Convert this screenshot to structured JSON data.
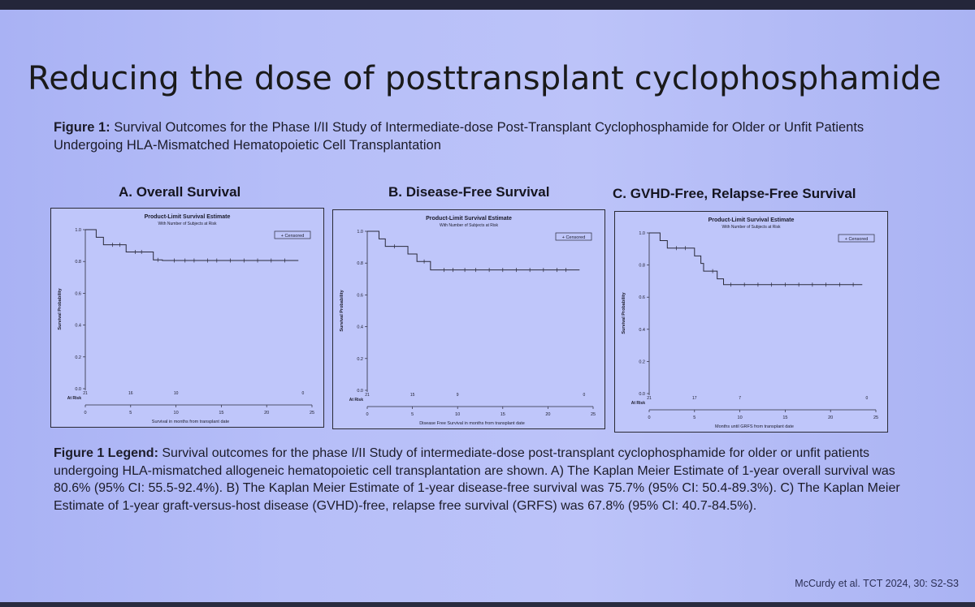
{
  "slide": {
    "title": "Reducing the dose of posttransplant cyclophosphamide",
    "figure_caption_label": "Figure 1:",
    "figure_caption_text": " Survival Outcomes for the Phase I/II Study of Intermediate-dose Post-Transplant Cyclophosphamide for Older or Unfit Patients Undergoing HLA-Mismatched Hematopoietic Cell Transplantation",
    "legend_label": "Figure 1 Legend:",
    "legend_text": " Survival outcomes for the phase I/II Study of intermediate-dose post-transplant cyclophosphamide for older or unfit patients undergoing HLA-mismatched allogeneic hematopoietic cell transplantation are shown. A) The Kaplan Meier Estimate of 1-year overall survival was 80.6% (95% CI: 55.5-92.4%). B) The Kaplan Meier Estimate of 1-year disease-free survival was 75.7% (95% CI: 50.4-89.3%). C) The Kaplan Meier Estimate of 1-year graft-versus-host disease (GVHD)-free, relapse free survival (GRFS) was 67.8% (95% CI: 40.7-84.5%).",
    "citation": "McCurdy et al. TCT 2024, 30: S2-S3"
  },
  "colors": {
    "line": "#2a2a3a",
    "slide_bg": "#b6bef8"
  },
  "chart_data": [
    {
      "type": "line",
      "panel_title": "A. Overall Survival",
      "title": "Product-Limit Survival Estimate",
      "subtitle": "With Number of Subjects at Risk",
      "legend": "+ Censored",
      "xlabel": "Survival in months from transplant date",
      "ylabel": "Survival Probability",
      "at_risk_label": "At Risk",
      "xlim": [
        0,
        25
      ],
      "ylim": [
        0,
        1
      ],
      "xticks": [
        "0",
        "5",
        "10",
        "15",
        "20",
        "25"
      ],
      "yticks": [
        "0.0",
        "0.2",
        "0.4",
        "0.6",
        "0.8",
        "1.0"
      ],
      "at_risk": [
        {
          "x": 0,
          "n": "21"
        },
        {
          "x": 5,
          "n": "16"
        },
        {
          "x": 10,
          "n": "10"
        },
        {
          "x": 24,
          "n": "0"
        }
      ],
      "steps": [
        [
          0,
          1.0
        ],
        [
          1.2,
          0.952
        ],
        [
          2.0,
          0.905
        ],
        [
          4.5,
          0.86
        ],
        [
          7.5,
          0.81
        ],
        [
          8.5,
          0.806
        ],
        [
          23.5,
          0.806
        ]
      ],
      "censored": [
        3.0,
        3.8,
        5.5,
        6.2,
        8.0,
        9.8,
        11.0,
        12.0,
        13.5,
        14.5,
        16.0,
        17.5,
        19.0,
        20.5,
        22.0
      ]
    },
    {
      "type": "line",
      "panel_title": "B. Disease-Free Survival",
      "title": "Product-Limit Survival Estimate",
      "subtitle": "With Number of Subjects at Risk",
      "legend": "+ Censored",
      "xlabel": "Disease Free Survival in months from transplant date",
      "ylabel": "Survival Probability",
      "at_risk_label": "At Risk",
      "xlim": [
        0,
        25
      ],
      "ylim": [
        0,
        1
      ],
      "xticks": [
        "0",
        "5",
        "10",
        "15",
        "20",
        "25"
      ],
      "yticks": [
        "0.0",
        "0.2",
        "0.4",
        "0.6",
        "0.8",
        "1.0"
      ],
      "at_risk": [
        {
          "x": 0,
          "n": "21"
        },
        {
          "x": 5,
          "n": "15"
        },
        {
          "x": 10,
          "n": "9"
        },
        {
          "x": 24,
          "n": "0"
        }
      ],
      "steps": [
        [
          0,
          1.0
        ],
        [
          1.3,
          0.952
        ],
        [
          2.0,
          0.905
        ],
        [
          4.5,
          0.857
        ],
        [
          5.5,
          0.81
        ],
        [
          7.0,
          0.757
        ],
        [
          23.5,
          0.757
        ]
      ],
      "censored": [
        3.0,
        6.3,
        8.5,
        9.5,
        10.8,
        12.0,
        13.5,
        15.0,
        16.5,
        18.0,
        19.5,
        21.0,
        22.0
      ]
    },
    {
      "type": "line",
      "panel_title": "C. GVHD-Free, Relapse-Free Survival",
      "title": "Product-Limit Survival Estimate",
      "subtitle": "With Number of Subjects at Risk",
      "legend": "+ Censored",
      "xlabel": "Months until GRFS from transplant date",
      "ylabel": "Survival Probability",
      "at_risk_label": "At Risk",
      "xlim": [
        0,
        25
      ],
      "ylim": [
        0,
        1
      ],
      "xticks": [
        "0",
        "5",
        "10",
        "15",
        "20",
        "25"
      ],
      "yticks": [
        "0.0",
        "0.2",
        "0.4",
        "0.6",
        "0.8",
        "1.0"
      ],
      "at_risk": [
        {
          "x": 0,
          "n": "21"
        },
        {
          "x": 5,
          "n": "17"
        },
        {
          "x": 10,
          "n": "7"
        },
        {
          "x": 24,
          "n": "0"
        }
      ],
      "steps": [
        [
          0,
          1.0
        ],
        [
          1.2,
          0.952
        ],
        [
          2.0,
          0.905
        ],
        [
          5.0,
          0.857
        ],
        [
          5.7,
          0.81
        ],
        [
          6.0,
          0.762
        ],
        [
          7.5,
          0.714
        ],
        [
          8.2,
          0.678
        ],
        [
          23.5,
          0.678
        ]
      ],
      "censored": [
        3.0,
        4.0,
        7.0,
        9.0,
        10.5,
        12.0,
        13.5,
        15.0,
        16.5,
        18.0,
        19.5,
        21.0,
        22.5
      ]
    }
  ]
}
